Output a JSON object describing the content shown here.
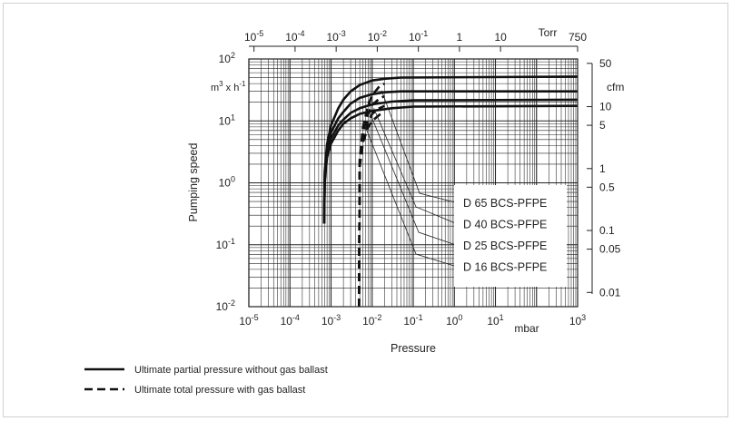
{
  "chart_data": {
    "type": "line",
    "xlabel": "Pressure",
    "ylabel": "Pumping speed",
    "x_unit": "mbar",
    "y_unit_left": "m3 x h-1",
    "x_scale": "log",
    "y_scale": "log",
    "xlim": [
      1e-05,
      1000
    ],
    "ylim": [
      0.01,
      100
    ],
    "grid": true,
    "legend_position": "bottom-left",
    "x_ticks": [
      {
        "base": "10",
        "exp": "-5",
        "value": 1e-05
      },
      {
        "base": "10",
        "exp": "-4",
        "value": 0.0001
      },
      {
        "base": "10",
        "exp": "-3",
        "value": 0.001
      },
      {
        "base": "10",
        "exp": "-2",
        "value": 0.01
      },
      {
        "base": "10",
        "exp": "-1",
        "value": 0.1
      },
      {
        "base": "10",
        "exp": "0",
        "value": 1
      },
      {
        "base": "10",
        "exp": "1",
        "value": 10
      },
      {
        "base": "10",
        "exp": "3",
        "value": 1000
      }
    ],
    "y_ticks": [
      {
        "base": "10",
        "exp": "2",
        "value": 100
      },
      {
        "base": "10",
        "exp": "1",
        "value": 10
      },
      {
        "base": "10",
        "exp": "0",
        "value": 1
      },
      {
        "base": "10",
        "exp": "-1",
        "value": 0.1
      },
      {
        "base": "10",
        "exp": "-2",
        "value": 0.01
      }
    ],
    "top_axis": {
      "unit": "Torr",
      "ticks": [
        {
          "base": "10",
          "exp": "-5",
          "value": 1e-05
        },
        {
          "base": "10",
          "exp": "-4",
          "value": 0.0001
        },
        {
          "base": "10",
          "exp": "-3",
          "value": 0.001
        },
        {
          "base": "10",
          "exp": "-2",
          "value": 0.01
        },
        {
          "base": "10",
          "exp": "-1",
          "value": 0.1
        },
        {
          "base": "1",
          "exp": "",
          "value": 1
        },
        {
          "base": "10",
          "exp": "",
          "value": 10
        },
        {
          "base": "750",
          "exp": "",
          "value": 750
        }
      ]
    },
    "right_axis": {
      "unit": "cfm",
      "conversion_m3h_per_cfm": 1.699,
      "ticks": [
        {
          "label": "50",
          "value": 50
        },
        {
          "label": "10",
          "value": 10
        },
        {
          "label": "5",
          "value": 5
        },
        {
          "label": "1",
          "value": 1
        },
        {
          "label": "0.5",
          "value": 0.5
        },
        {
          "label": "0.1",
          "value": 0.1
        },
        {
          "label": "0.05",
          "value": 0.05
        },
        {
          "label": "0.01",
          "value": 0.01
        }
      ]
    },
    "series": [
      {
        "name": "D 65 BCS-PFPE",
        "style": "solid",
        "x": [
          0.00068,
          0.0007,
          0.0008,
          0.001,
          0.0015,
          0.002,
          0.003,
          0.005,
          0.01,
          0.02,
          0.05,
          1000
        ],
        "y": [
          0.22,
          1.5,
          4.2,
          8.5,
          16,
          22,
          30,
          38,
          45,
          48,
          50,
          52
        ]
      },
      {
        "name": "D 40 BCS-PFPE",
        "style": "solid",
        "x": [
          0.00068,
          0.0007,
          0.0008,
          0.001,
          0.0015,
          0.002,
          0.003,
          0.005,
          0.01,
          0.02,
          0.05,
          1000
        ],
        "y": [
          0.22,
          1.3,
          3.5,
          6.5,
          11,
          14,
          19,
          23.5,
          27,
          29,
          30,
          30
        ]
      },
      {
        "name": "D 25 BCS-PFPE",
        "style": "solid",
        "x": [
          0.00068,
          0.0007,
          0.0008,
          0.001,
          0.0015,
          0.002,
          0.003,
          0.005,
          0.01,
          0.03,
          0.1,
          1000
        ],
        "y": [
          0.22,
          1.1,
          3,
          5.2,
          8.5,
          10.5,
          13.5,
          16,
          18.5,
          20.5,
          21.5,
          22
        ]
      },
      {
        "name": "D 16 BCS-PFPE",
        "style": "solid",
        "x": [
          0.00068,
          0.0007,
          0.0008,
          0.001,
          0.0015,
          0.002,
          0.003,
          0.005,
          0.01,
          0.03,
          0.1,
          1000
        ],
        "y": [
          0.22,
          1,
          2.6,
          4.3,
          7,
          9,
          11,
          13,
          14.5,
          16,
          17,
          17.5
        ]
      },
      {
        "name": "D 65 BCS-PFPE",
        "style": "dashed",
        "x": [
          0.0048,
          0.005,
          0.006,
          0.008,
          0.01,
          0.015,
          0.02
        ],
        "y": [
          0.01,
          2.4,
          8,
          18,
          26,
          36,
          40
        ]
      },
      {
        "name": "D 40 BCS-PFPE",
        "style": "dashed",
        "x": [
          0.0048,
          0.005,
          0.006,
          0.008,
          0.01,
          0.015,
          0.02
        ],
        "y": [
          0.01,
          2.2,
          6.5,
          13,
          18,
          23,
          25
        ]
      },
      {
        "name": "D 25 BCS-PFPE",
        "style": "dashed",
        "x": [
          0.0048,
          0.005,
          0.006,
          0.008,
          0.01,
          0.015,
          0.02
        ],
        "y": [
          0.01,
          2,
          5.5,
          10,
          13,
          16,
          17.5
        ]
      },
      {
        "name": "D 16 BCS-PFPE",
        "style": "dashed",
        "x": [
          0.0048,
          0.005,
          0.006,
          0.008,
          0.01,
          0.015,
          0.02
        ],
        "y": [
          0.01,
          1.8,
          4.5,
          8,
          10,
          12.5,
          14
        ]
      }
    ],
    "callouts": [
      {
        "label": "D 65 BCS-PFPE",
        "anchor": [
          0.017,
          31
        ]
      },
      {
        "label": "D 40 BCS-PFPE",
        "anchor": [
          0.011,
          16
        ]
      },
      {
        "label": "D 25 BCS-PFPE",
        "anchor": [
          0.0095,
          12
        ]
      },
      {
        "label": "D 16 BCS-PFPE",
        "anchor": [
          0.0062,
          9.5
        ]
      }
    ],
    "legend": [
      {
        "style": "solid",
        "label": "Ultimate partial pressure without gas ballast"
      },
      {
        "style": "dashed",
        "label": "Ultimate total pressure with gas ballast"
      }
    ]
  }
}
